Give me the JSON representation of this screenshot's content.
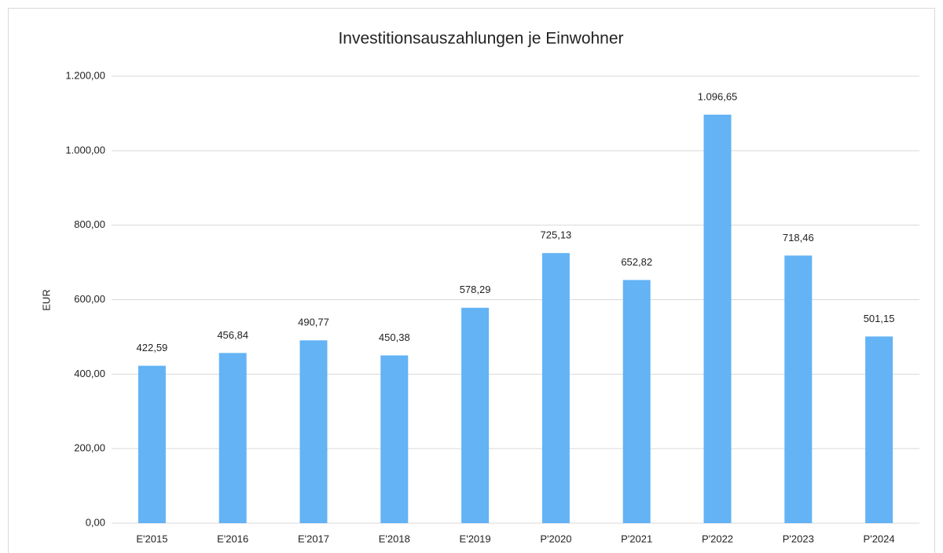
{
  "chart_data": {
    "type": "bar",
    "title": "Investitionsauszahlungen je Einwohner",
    "y_label": "EUR",
    "categories": [
      "E'2015",
      "E'2016",
      "E'2017",
      "E'2018",
      "E'2019",
      "P'2020",
      "P'2021",
      "P'2022",
      "P'2023",
      "P'2024"
    ],
    "values": [
      422.59,
      456.84,
      490.77,
      450.38,
      578.29,
      725.13,
      652.82,
      1096.65,
      718.46,
      501.15
    ],
    "value_labels": [
      "422,59",
      "456,84",
      "490,77",
      "450,38",
      "578,29",
      "725,13",
      "652,82",
      "1.096,65",
      "718,46",
      "501,15"
    ],
    "color": "#63b3f5",
    "ylim": [
      0,
      1200
    ],
    "yticks": [
      {
        "value": 0,
        "label": "0,00"
      },
      {
        "value": 200,
        "label": "200,00"
      },
      {
        "value": 400,
        "label": "400,00"
      },
      {
        "value": 600,
        "label": "600,00"
      },
      {
        "value": 800,
        "label": "800,00"
      },
      {
        "value": 1000,
        "label": "1.000,00"
      },
      {
        "value": 1200,
        "label": "1.200,00"
      }
    ],
    "grid": true
  }
}
